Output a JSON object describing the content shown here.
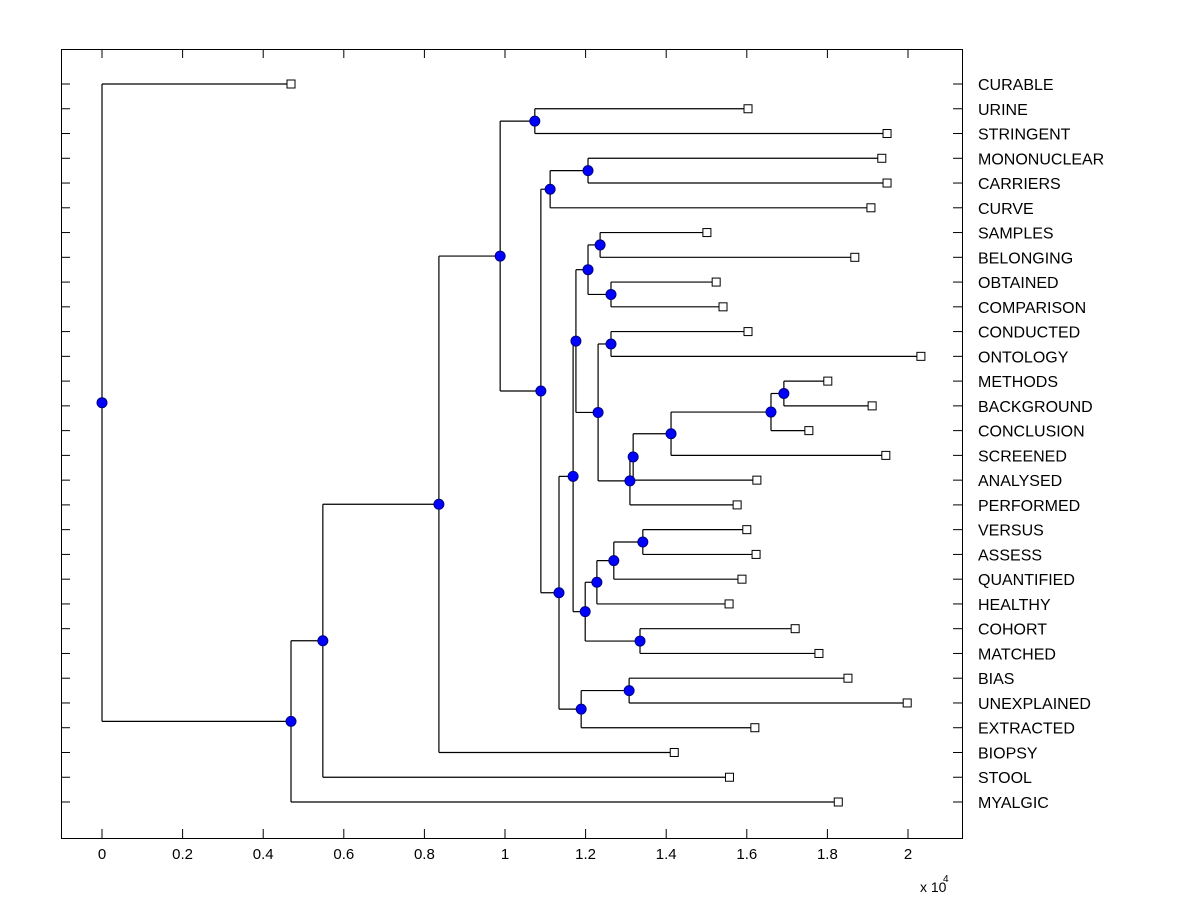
{
  "chart_data": {
    "type": "dendrogram",
    "title": "",
    "xlabel": "",
    "ylabel": "",
    "x_multiplier_label": "x 10",
    "x_multiplier_exponent": "4",
    "xlim": [
      -0.1,
      2.134
    ],
    "xticks": [
      0,
      0.2,
      0.4,
      0.6,
      0.8,
      1,
      1.2,
      1.4,
      1.6,
      1.8,
      2
    ],
    "xtick_labels": [
      "0",
      "0.2",
      "0.4",
      "0.6",
      "0.8",
      "1",
      "1.2",
      "1.4",
      "1.6",
      "1.8",
      "2"
    ],
    "grid": false,
    "leaf_label_position": "right",
    "colors": {
      "line": "#000000",
      "node_fill": "#0000ff",
      "node_stroke": "#000080",
      "leaf_fill": "#ffffff",
      "leaf_stroke": "#000000",
      "frame": "#000000"
    },
    "leaves": [
      {
        "id": "L0",
        "label": "CURABLE",
        "x": 0.469
      },
      {
        "id": "L1",
        "label": "URINE",
        "x": 1.603
      },
      {
        "id": "L2",
        "label": "STRINGENT",
        "x": 1.948
      },
      {
        "id": "L3",
        "label": "MONONUCLEAR",
        "x": 1.935
      },
      {
        "id": "L4",
        "label": "CARRIERS",
        "x": 1.948
      },
      {
        "id": "L5",
        "label": "CURVE",
        "x": 1.908
      },
      {
        "id": "L6",
        "label": "SAMPLES",
        "x": 1.501
      },
      {
        "id": "L7",
        "label": "BELONGING",
        "x": 1.868
      },
      {
        "id": "L8",
        "label": "OBTAINED",
        "x": 1.524
      },
      {
        "id": "L9",
        "label": "COMPARISON",
        "x": 1.541
      },
      {
        "id": "L10",
        "label": "CONDUCTED",
        "x": 1.603
      },
      {
        "id": "L11",
        "label": "ONTOLOGY",
        "x": 2.032
      },
      {
        "id": "L12",
        "label": "METHODS",
        "x": 1.801
      },
      {
        "id": "L13",
        "label": "BACKGROUND",
        "x": 1.911
      },
      {
        "id": "L14",
        "label": "CONCLUSION",
        "x": 1.754
      },
      {
        "id": "L15",
        "label": "SCREENED",
        "x": 1.945
      },
      {
        "id": "L16",
        "label": "ANALYSED",
        "x": 1.625
      },
      {
        "id": "L17",
        "label": "PERFORMED",
        "x": 1.576
      },
      {
        "id": "L18",
        "label": "VERSUS",
        "x": 1.6
      },
      {
        "id": "L19",
        "label": "ASSESS",
        "x": 1.623
      },
      {
        "id": "L20",
        "label": "QUANTIFIED",
        "x": 1.588
      },
      {
        "id": "L21",
        "label": "HEALTHY",
        "x": 1.556
      },
      {
        "id": "L22",
        "label": "COHORT",
        "x": 1.72
      },
      {
        "id": "L23",
        "label": "MATCHED",
        "x": 1.779
      },
      {
        "id": "L24",
        "label": "BIAS",
        "x": 1.851
      },
      {
        "id": "L25",
        "label": "UNEXPLAINED",
        "x": 1.998
      },
      {
        "id": "L26",
        "label": "EXTRACTED",
        "x": 1.62
      },
      {
        "id": "L27",
        "label": "BIOPSY",
        "x": 1.42
      },
      {
        "id": "L28",
        "label": "STOOL",
        "x": 1.557
      },
      {
        "id": "L29",
        "label": "MYALGIC",
        "x": 1.827
      }
    ],
    "nodes": [
      {
        "id": "N1",
        "x": 1.074,
        "children": [
          "L1",
          "L2"
        ]
      },
      {
        "id": "N2",
        "x": 1.206,
        "children": [
          "L3",
          "L4"
        ]
      },
      {
        "id": "N3",
        "x": 1.112,
        "children": [
          "N2",
          "L5"
        ]
      },
      {
        "id": "N4",
        "x": 1.236,
        "children": [
          "L6",
          "L7"
        ]
      },
      {
        "id": "N5",
        "x": 1.263,
        "children": [
          "L8",
          "L9"
        ]
      },
      {
        "id": "N6",
        "x": 1.206,
        "children": [
          "N4",
          "N5"
        ]
      },
      {
        "id": "N7",
        "x": 1.263,
        "children": [
          "L10",
          "L11"
        ]
      },
      {
        "id": "N8",
        "x": 1.692,
        "children": [
          "L12",
          "L13"
        ]
      },
      {
        "id": "N9",
        "x": 1.66,
        "children": [
          "N8",
          "L14"
        ]
      },
      {
        "id": "N10",
        "x": 1.412,
        "children": [
          "N9",
          "L15"
        ]
      },
      {
        "id": "N11",
        "x": 1.318,
        "children": [
          "N10",
          "L16"
        ]
      },
      {
        "id": "N12",
        "x": 1.31,
        "children": [
          "N11",
          "L17"
        ]
      },
      {
        "id": "N13",
        "x": 1.231,
        "children": [
          "N7",
          "N12"
        ]
      },
      {
        "id": "N14",
        "x": 1.176,
        "children": [
          "N6",
          "N13"
        ]
      },
      {
        "id": "N15",
        "x": 1.342,
        "children": [
          "L18",
          "L19"
        ]
      },
      {
        "id": "N16",
        "x": 1.27,
        "children": [
          "N15",
          "L20"
        ]
      },
      {
        "id": "N17",
        "x": 1.228,
        "children": [
          "N16",
          "L21"
        ]
      },
      {
        "id": "N18",
        "x": 1.335,
        "children": [
          "L22",
          "L23"
        ]
      },
      {
        "id": "N19",
        "x": 1.199,
        "children": [
          "N17",
          "N18"
        ]
      },
      {
        "id": "N20",
        "x": 1.169,
        "children": [
          "N14",
          "N19"
        ]
      },
      {
        "id": "N21",
        "x": 1.308,
        "children": [
          "L24",
          "L25"
        ]
      },
      {
        "id": "N22",
        "x": 1.189,
        "children": [
          "N21",
          "L26"
        ]
      },
      {
        "id": "N23",
        "x": 1.134,
        "children": [
          "N20",
          "N22"
        ]
      },
      {
        "id": "N24",
        "x": 1.089,
        "children": [
          "N3",
          "N23"
        ]
      },
      {
        "id": "N25",
        "x": 0.988,
        "children": [
          "N1",
          "N24"
        ]
      },
      {
        "id": "N26",
        "x": 0.836,
        "children": [
          "N25",
          "L27"
        ]
      },
      {
        "id": "N27",
        "x": 0.548,
        "children": [
          "N26",
          "L28"
        ]
      },
      {
        "id": "N28",
        "x": 0.469,
        "children": [
          "N27",
          "L29"
        ]
      },
      {
        "id": "N29",
        "x": 0.0,
        "children": [
          "L0",
          "N28"
        ]
      }
    ]
  }
}
